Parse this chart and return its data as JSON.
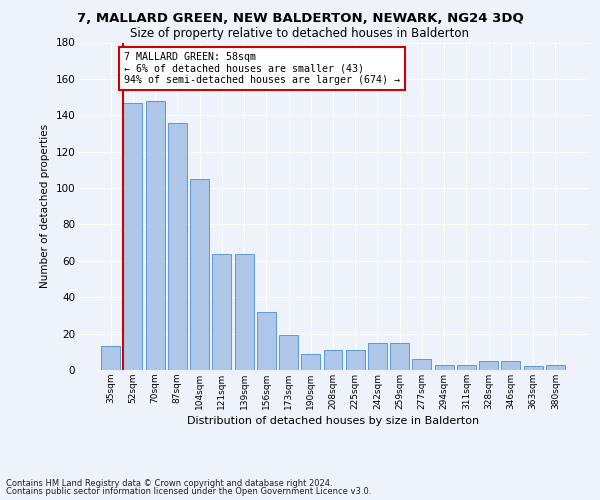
{
  "title": "7, MALLARD GREEN, NEW BALDERTON, NEWARK, NG24 3DQ",
  "subtitle": "Size of property relative to detached houses in Balderton",
  "xlabel": "Distribution of detached houses by size in Balderton",
  "ylabel": "Number of detached properties",
  "categories": [
    "35sqm",
    "52sqm",
    "70sqm",
    "87sqm",
    "104sqm",
    "121sqm",
    "139sqm",
    "156sqm",
    "173sqm",
    "190sqm",
    "208sqm",
    "225sqm",
    "242sqm",
    "259sqm",
    "277sqm",
    "294sqm",
    "311sqm",
    "328sqm",
    "346sqm",
    "363sqm",
    "380sqm"
  ],
  "values": [
    13,
    147,
    148,
    136,
    105,
    64,
    64,
    32,
    19,
    9,
    11,
    11,
    15,
    15,
    6,
    3,
    3,
    5,
    5,
    2,
    3
  ],
  "bar_color": "#aec6e8",
  "bar_edge_color": "#5b9bd5",
  "vline_color": "#cc0000",
  "annotation_text": "7 MALLARD GREEN: 58sqm\n← 6% of detached houses are smaller (43)\n94% of semi-detached houses are larger (674) →",
  "annotation_box_color": "#ffffff",
  "annotation_box_edge": "#cc0000",
  "ylim": [
    0,
    180
  ],
  "yticks": [
    0,
    20,
    40,
    60,
    80,
    100,
    120,
    140,
    160,
    180
  ],
  "background_color": "#eef2fb",
  "grid_color": "#ffffff",
  "footer1": "Contains HM Land Registry data © Crown copyright and database right 2024.",
  "footer2": "Contains public sector information licensed under the Open Government Licence v3.0."
}
